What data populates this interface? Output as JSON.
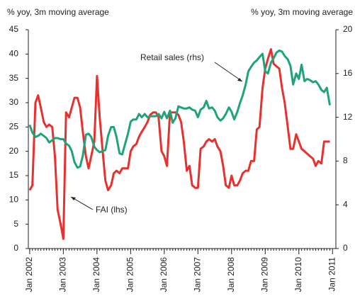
{
  "chart_data": {
    "type": "line",
    "y_label": "% yoy, 3m moving average",
    "y2_label": "% yoy, 3m moving average",
    "annotations": [
      "Retail sales (rhs)",
      "FAI (lhs)"
    ],
    "x": [
      2002,
      2002.08,
      2002.17,
      2002.25,
      2002.33,
      2002.42,
      2002.5,
      2002.58,
      2002.67,
      2002.75,
      2002.83,
      2002.92,
      2003,
      2003.08,
      2003.17,
      2003.25,
      2003.33,
      2003.42,
      2003.5,
      2003.58,
      2003.67,
      2003.75,
      2003.83,
      2003.92,
      2004,
      2004.08,
      2004.17,
      2004.25,
      2004.33,
      2004.42,
      2004.5,
      2004.58,
      2004.67,
      2004.75,
      2004.83,
      2004.92,
      2005,
      2005.08,
      2005.17,
      2005.25,
      2005.33,
      2005.42,
      2005.5,
      2005.58,
      2005.67,
      2005.75,
      2005.83,
      2005.92,
      2006,
      2006.08,
      2006.17,
      2006.25,
      2006.33,
      2006.42,
      2006.5,
      2006.58,
      2006.67,
      2006.75,
      2006.83,
      2006.92,
      2007,
      2007.08,
      2007.17,
      2007.25,
      2007.33,
      2007.42,
      2007.5,
      2007.58,
      2007.67,
      2007.75,
      2007.83,
      2007.92,
      2008,
      2008.08,
      2008.17,
      2008.25,
      2008.33,
      2008.42,
      2008.5,
      2008.58,
      2008.67,
      2008.75,
      2008.83,
      2008.92,
      2009,
      2009.08,
      2009.17,
      2009.25,
      2009.33,
      2009.42,
      2009.5,
      2009.58,
      2009.67,
      2009.75,
      2009.83,
      2009.92,
      2010,
      2010.08,
      2010.17,
      2010.25,
      2010.33,
      2010.42,
      2010.5,
      2010.58,
      2010.67,
      2010.75,
      2010.83,
      2010.92
    ],
    "series": [
      {
        "name": "FAI",
        "color": "#e8312f",
        "axis": "y",
        "values": [
          12,
          13,
          30,
          31.5,
          29,
          26,
          25,
          25.5,
          25,
          19,
          8,
          5,
          2,
          28,
          27,
          29,
          31,
          31,
          29,
          24,
          19,
          16.5,
          19,
          22,
          35.5,
          27,
          20,
          14,
          12,
          13,
          15.5,
          16,
          15.5,
          16.5,
          16.5,
          16.5,
          20,
          21,
          21.5,
          23,
          24,
          25,
          26,
          27.5,
          28,
          28,
          27,
          20,
          19,
          17,
          28,
          28,
          28,
          27.5,
          26,
          22,
          16,
          17,
          13,
          12.5,
          12.5,
          20.5,
          21,
          22,
          22.5,
          22,
          22.5,
          21,
          20,
          17,
          13,
          12.5,
          15,
          13,
          13,
          14,
          15.5,
          16,
          16,
          18,
          18,
          24.5,
          25,
          33,
          37,
          39,
          41,
          38,
          37.5,
          37,
          33,
          30,
          25,
          20.5,
          20.5,
          23.5,
          22,
          20.5,
          20,
          19.5,
          19,
          18.5,
          17,
          18,
          17.5,
          22,
          22,
          22
        ]
      },
      {
        "name": "Retail sales",
        "color": "#1fa37a",
        "axis": "y2",
        "values": [
          11.3,
          10.6,
          10.2,
          10.3,
          10.5,
          10.3,
          10.1,
          9.7,
          9.9,
          10.1,
          10.1,
          10,
          10,
          9.6,
          9.4,
          8.9,
          7.9,
          7.4,
          7.5,
          8.5,
          10.4,
          10.5,
          10.2,
          9.3,
          9,
          8.8,
          8.9,
          9,
          10.3,
          11.1,
          11.1,
          10.2,
          8.7,
          8.6,
          9.5,
          10.5,
          11.6,
          11.8,
          11.8,
          12.3,
          12,
          12.3,
          12,
          12.1,
          12.1,
          12.1,
          12.3,
          11.9,
          12.5,
          11.9,
          12.6,
          11.5,
          11.9,
          13,
          12.9,
          12.8,
          12.8,
          12.9,
          12.7,
          12.6,
          12,
          12.7,
          12.9,
          13.5,
          12.8,
          12.9,
          12.6,
          12,
          11.7,
          11.9,
          12.3,
          12.9,
          12.5,
          11.8,
          12.5,
          13.3,
          14,
          15,
          16.2,
          16.6,
          17,
          17.2,
          17.5,
          17.8,
          16.2,
          16,
          17,
          17.4,
          17.9,
          18.1,
          18,
          17.6,
          17.3,
          16.7,
          15,
          16,
          15.5,
          16.8,
          15.3,
          15.5,
          15.4,
          15.2,
          15.3,
          15,
          14.5,
          14.3,
          14.7,
          13.1
        ]
      }
    ],
    "xlim": [
      2001.96,
      2011.1
    ],
    "xticks": [
      {
        "value": 2002,
        "label": "Jan 2002"
      },
      {
        "value": 2003,
        "label": "Jan 2003"
      },
      {
        "value": 2004,
        "label": "Jan 2004"
      },
      {
        "value": 2005,
        "label": "Jan 2005"
      },
      {
        "value": 2006,
        "label": "Jan 2006"
      },
      {
        "value": 2007,
        "label": "Jan 2007"
      },
      {
        "value": 2008,
        "label": "Jan 2008"
      },
      {
        "value": 2009,
        "label": "Jan 2009"
      },
      {
        "value": 2010,
        "label": "Jan 2010"
      },
      {
        "value": 2011,
        "label": "Jan 2011"
      }
    ],
    "ylim": [
      0,
      45
    ],
    "yticks": [
      0,
      5,
      10,
      15,
      20,
      25,
      30,
      35,
      40,
      45
    ],
    "y2lim": [
      0,
      20
    ],
    "y2ticks": [
      0,
      4,
      8,
      12,
      16,
      20
    ]
  }
}
